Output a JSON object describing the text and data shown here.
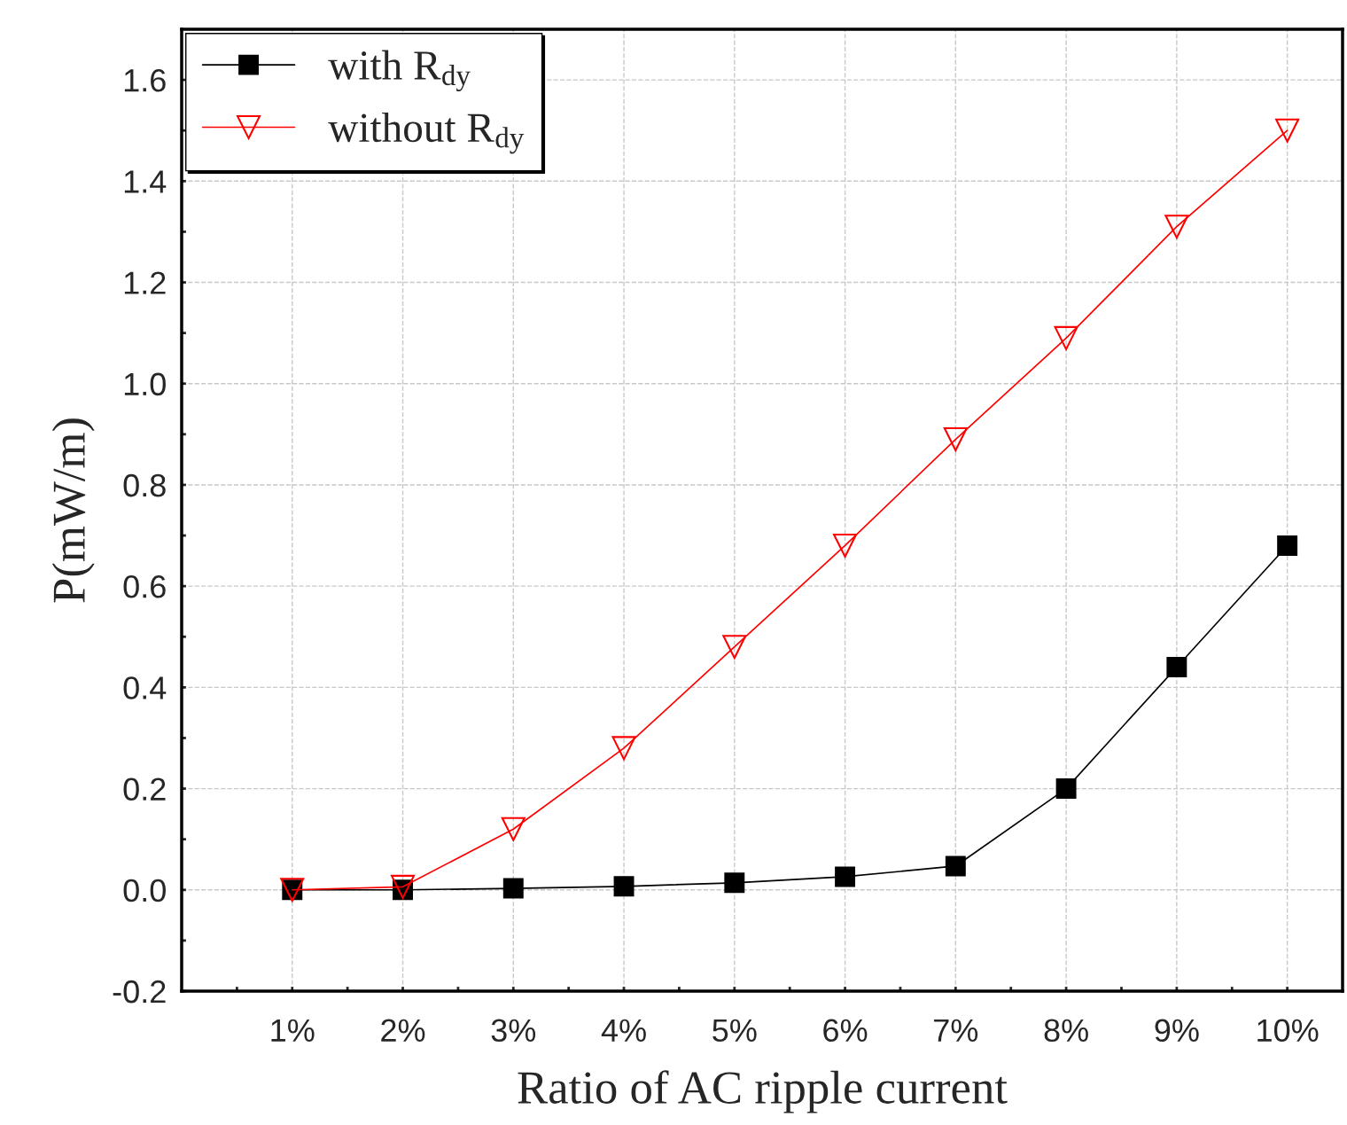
{
  "chart_data": {
    "type": "line",
    "xlabel": "Ratio of AC ripple current",
    "ylabel": "P(mW/m)",
    "x": [
      1,
      2,
      3,
      4,
      5,
      6,
      7,
      8,
      9,
      10
    ],
    "series": [
      {
        "name": "with R$_{dy}$",
        "color": "#000000",
        "marker": "square",
        "values": [
          0,
          0,
          0.003,
          0.007,
          0.014,
          0.026,
          0.047,
          0.2,
          0.44,
          0.68
        ]
      },
      {
        "name": "without R$_{dy}$",
        "color": "#ff0000",
        "marker": "triangle",
        "values": [
          0,
          0.006,
          0.12,
          0.28,
          0.48,
          0.68,
          0.89,
          1.09,
          1.31,
          1.5
        ]
      }
    ],
    "xlim": [
      0,
      10.5
    ],
    "xticks": [
      {
        "value": 0.5,
        "label": null
      },
      {
        "value": 1,
        "label": "1%"
      },
      {
        "value": 1.5,
        "label": null
      },
      {
        "value": 2,
        "label": "2%"
      },
      {
        "value": 2.5,
        "label": null
      },
      {
        "value": 3,
        "label": "3%"
      },
      {
        "value": 3.5,
        "label": null
      },
      {
        "value": 4,
        "label": "4%"
      },
      {
        "value": 4.5,
        "label": null
      },
      {
        "value": 5,
        "label": "5%"
      },
      {
        "value": 5.5,
        "label": null
      },
      {
        "value": 6,
        "label": "6%"
      },
      {
        "value": 6.5,
        "label": null
      },
      {
        "value": 7,
        "label": "7%"
      },
      {
        "value": 7.5,
        "label": null
      },
      {
        "value": 8,
        "label": "8%"
      },
      {
        "value": 8.5,
        "label": null
      },
      {
        "value": 9,
        "label": "9%"
      },
      {
        "value": 9.5,
        "label": null
      },
      {
        "value": 10,
        "label": "10%"
      }
    ],
    "ylim": [
      -0.2,
      1.7
    ],
    "yticks": [
      -0.2,
      {
        "value": -0.1,
        "label": null
      },
      {
        "value": 0.0,
        "label": "0.0"
      },
      {
        "value": 0.1,
        "label": null
      },
      0.2,
      {
        "value": 0.3,
        "label": null
      },
      0.4,
      {
        "value": 0.5,
        "label": null
      },
      0.6,
      {
        "value": 0.7,
        "label": null
      },
      0.8,
      {
        "value": 0.9,
        "label": null
      },
      {
        "value": 1.0,
        "label": "1.0"
      },
      {
        "value": 1.1,
        "label": null
      },
      1.2,
      {
        "value": 1.3,
        "label": null
      },
      1.4,
      {
        "value": 1.5,
        "label": null
      },
      1.6
    ],
    "grid": true,
    "legend": "top left",
    "line_style": "solid"
  }
}
